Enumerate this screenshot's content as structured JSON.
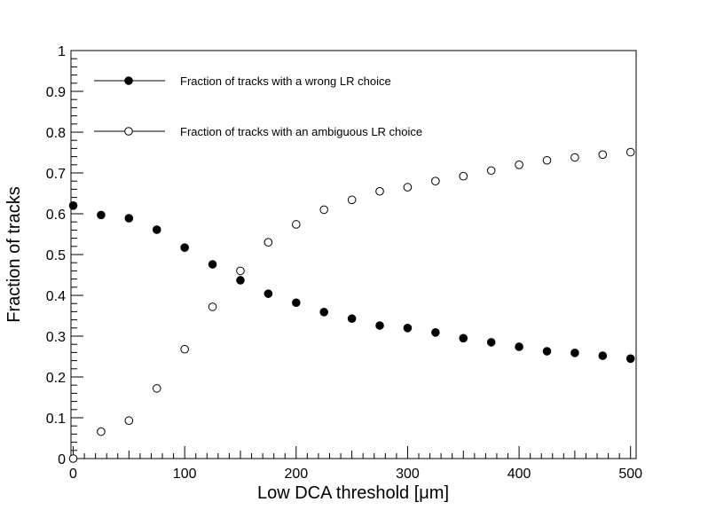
{
  "chart_data": {
    "type": "scatter",
    "xlabel": "Low DCA threshold [μm]",
    "ylabel": "Fraction of tracks",
    "xlim": [
      -2,
      505
    ],
    "ylim": [
      0,
      1
    ],
    "xticks": [
      0,
      100,
      200,
      300,
      400,
      500
    ],
    "xtick_labels": [
      "0",
      "100",
      "200",
      "300",
      "400",
      "500"
    ],
    "yticks": [
      0,
      0.1,
      0.2,
      0.3,
      0.4,
      0.5,
      0.6,
      0.7,
      0.8,
      0.9,
      1
    ],
    "ytick_labels": [
      "0",
      "0.1",
      "0.2",
      "0.3",
      "0.4",
      "0.5",
      "0.6",
      "0.7",
      "0.8",
      "0.9",
      "1"
    ],
    "grid": false,
    "legend_position": "top-left",
    "x": [
      0,
      25,
      50,
      75,
      100,
      125,
      150,
      175,
      200,
      225,
      250,
      275,
      300,
      325,
      350,
      375,
      400,
      425,
      450,
      475,
      500
    ],
    "series": [
      {
        "name": "Fraction of tracks with a wrong LR choice",
        "marker": "filled-circle",
        "color": "#000000",
        "values": [
          0.62,
          0.597,
          0.589,
          0.561,
          0.517,
          0.476,
          0.437,
          0.404,
          0.382,
          0.359,
          0.343,
          0.326,
          0.32,
          0.309,
          0.295,
          0.285,
          0.274,
          0.263,
          0.259,
          0.252,
          0.245
        ]
      },
      {
        "name": "Fraction of tracks with an ambiguous LR choice",
        "marker": "open-circle",
        "color": "#000000",
        "values": [
          0.0,
          0.066,
          0.093,
          0.172,
          0.268,
          0.372,
          0.46,
          0.53,
          0.574,
          0.61,
          0.634,
          0.655,
          0.665,
          0.68,
          0.692,
          0.706,
          0.72,
          0.731,
          0.738,
          0.745,
          0.751
        ]
      }
    ]
  }
}
